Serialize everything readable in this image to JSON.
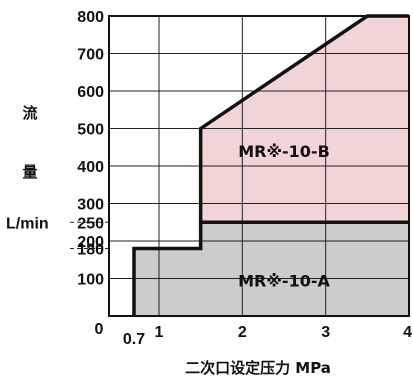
{
  "chart_data": {
    "type": "area",
    "title": "",
    "xlabel": "二次口设定压力 MPa",
    "ylabel_chars": [
      "流",
      "量"
    ],
    "yunit": "L/min",
    "xlim": [
      0.4,
      4
    ],
    "ylim": [
      0,
      800
    ],
    "x_ticks": [
      {
        "value": 0,
        "label": "0"
      },
      {
        "value": 0.7,
        "label": "0.7"
      },
      {
        "value": 1,
        "label": "1"
      },
      {
        "value": 2,
        "label": "2"
      },
      {
        "value": 3,
        "label": "3"
      },
      {
        "value": 4,
        "label": "4"
      }
    ],
    "y_ticks": [
      {
        "value": 100,
        "label": "100"
      },
      {
        "value": 180,
        "label": "180"
      },
      {
        "value": 200,
        "label": "200"
      },
      {
        "value": 250,
        "label": "250"
      },
      {
        "value": 300,
        "label": "300"
      },
      {
        "value": 400,
        "label": "400"
      },
      {
        "value": 500,
        "label": "500"
      },
      {
        "value": 600,
        "label": "600"
      },
      {
        "value": 700,
        "label": "700"
      },
      {
        "value": 800,
        "label": "800"
      }
    ],
    "grid_x": [
      1,
      2,
      3,
      4
    ],
    "grid_y": [
      100,
      200,
      300,
      400,
      500,
      600,
      700
    ],
    "dashed_refs": [
      180,
      250
    ],
    "series": [
      {
        "name": "MR※-10-A",
        "color": "#cccccc",
        "x": [
          0.7,
          0.7,
          1.5,
          1.5,
          4
        ],
        "y": [
          0,
          180,
          180,
          250,
          250
        ]
      },
      {
        "name": "MR※-10-B",
        "color": "#f2d4d6",
        "x": [
          1.5,
          1.5,
          3.5,
          4
        ],
        "y": [
          250,
          500,
          800,
          800
        ]
      }
    ],
    "region_labels": [
      {
        "text": "MR※-10-A",
        "x": 2.5,
        "y": 95
      },
      {
        "text": "MR※-10-B",
        "x": 2.5,
        "y": 440
      }
    ]
  }
}
